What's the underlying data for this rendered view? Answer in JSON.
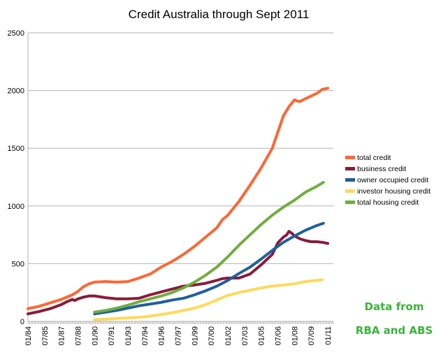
{
  "chart_data": {
    "type": "line",
    "title": "Credit Australia through Sept 2011",
    "xlabel": "",
    "ylabel": "",
    "ylim": [
      0,
      2500
    ],
    "yticks": [
      0,
      500,
      1000,
      1500,
      2000,
      2500
    ],
    "grid": true,
    "legend_position": "right",
    "xticks": [
      "01/84",
      "07/85",
      "01/87",
      "07/88",
      "01/90",
      "07/91",
      "01/93",
      "07/94",
      "01/96",
      "07/97",
      "01/99",
      "07/00",
      "01/02",
      "07/03",
      "01/05",
      "07/06",
      "01/08",
      "07/09",
      "01/11"
    ],
    "series": [
      {
        "name": "total credit",
        "color": "#ff6633",
        "points": [
          [
            1984.0,
            110
          ],
          [
            1985.0,
            130
          ],
          [
            1986.0,
            160
          ],
          [
            1987.0,
            190
          ],
          [
            1988.0,
            230
          ],
          [
            1988.5,
            260
          ],
          [
            1989.0,
            300
          ],
          [
            1989.5,
            325
          ],
          [
            1990.0,
            340
          ],
          [
            1991.0,
            345
          ],
          [
            1992.0,
            340
          ],
          [
            1993.0,
            345
          ],
          [
            1994.0,
            375
          ],
          [
            1995.0,
            410
          ],
          [
            1996.0,
            470
          ],
          [
            1997.0,
            520
          ],
          [
            1998.0,
            580
          ],
          [
            1999.0,
            650
          ],
          [
            2000.0,
            730
          ],
          [
            2001.0,
            810
          ],
          [
            2001.5,
            880
          ],
          [
            2002.0,
            920
          ],
          [
            2003.0,
            1040
          ],
          [
            2004.0,
            1180
          ],
          [
            2005.0,
            1330
          ],
          [
            2006.0,
            1500
          ],
          [
            2007.0,
            1780
          ],
          [
            2007.5,
            1860
          ],
          [
            2008.0,
            1920
          ],
          [
            2008.2,
            1910
          ],
          [
            2008.5,
            1905
          ],
          [
            2009.0,
            1930
          ],
          [
            2010.0,
            1975
          ],
          [
            2010.5,
            2010
          ],
          [
            2011.0,
            2020
          ]
        ]
      },
      {
        "name": "business credit",
        "color": "#8b1a38",
        "points": [
          [
            1984.0,
            65
          ],
          [
            1985.0,
            85
          ],
          [
            1986.0,
            110
          ],
          [
            1987.0,
            145
          ],
          [
            1987.5,
            170
          ],
          [
            1988.0,
            190
          ],
          [
            1988.2,
            180
          ],
          [
            1988.5,
            195
          ],
          [
            1989.0,
            210
          ],
          [
            1989.5,
            220
          ],
          [
            1990.0,
            220
          ],
          [
            1991.0,
            205
          ],
          [
            1992.0,
            195
          ],
          [
            1993.0,
            195
          ],
          [
            1994.0,
            200
          ],
          [
            1995.0,
            230
          ],
          [
            1996.0,
            255
          ],
          [
            1997.0,
            280
          ],
          [
            1998.0,
            305
          ],
          [
            1999.0,
            315
          ],
          [
            2000.0,
            330
          ],
          [
            2001.0,
            355
          ],
          [
            2001.5,
            370
          ],
          [
            2002.0,
            375
          ],
          [
            2003.0,
            375
          ],
          [
            2004.0,
            410
          ],
          [
            2005.0,
            490
          ],
          [
            2006.0,
            580
          ],
          [
            2006.5,
            680
          ],
          [
            2007.0,
            730
          ],
          [
            2007.3,
            750
          ],
          [
            2007.5,
            780
          ],
          [
            2007.8,
            760
          ],
          [
            2008.0,
            740
          ],
          [
            2008.5,
            715
          ],
          [
            2009.0,
            700
          ],
          [
            2009.5,
            690
          ],
          [
            2010.0,
            690
          ],
          [
            2010.5,
            685
          ],
          [
            2011.0,
            675
          ]
        ]
      },
      {
        "name": "owner occupied credit",
        "color": "#1f5f9e",
        "points": [
          [
            1990.0,
            65
          ],
          [
            1991.0,
            80
          ],
          [
            1992.0,
            95
          ],
          [
            1993.0,
            115
          ],
          [
            1994.0,
            135
          ],
          [
            1995.0,
            150
          ],
          [
            1996.0,
            165
          ],
          [
            1997.0,
            185
          ],
          [
            1998.0,
            200
          ],
          [
            1999.0,
            230
          ],
          [
            2000.0,
            265
          ],
          [
            2001.0,
            305
          ],
          [
            2002.0,
            355
          ],
          [
            2003.0,
            415
          ],
          [
            2004.0,
            470
          ],
          [
            2005.0,
            540
          ],
          [
            2006.0,
            615
          ],
          [
            2007.0,
            685
          ],
          [
            2008.0,
            740
          ],
          [
            2009.0,
            790
          ],
          [
            2010.0,
            830
          ],
          [
            2010.6,
            850
          ]
        ]
      },
      {
        "name": "investor housing credit",
        "color": "#ffd95a",
        "points": [
          [
            1990.0,
            15
          ],
          [
            1991.0,
            20
          ],
          [
            1992.0,
            25
          ],
          [
            1993.0,
            30
          ],
          [
            1994.0,
            35
          ],
          [
            1995.0,
            45
          ],
          [
            1996.0,
            60
          ],
          [
            1997.0,
            75
          ],
          [
            1998.0,
            95
          ],
          [
            1999.0,
            115
          ],
          [
            2000.0,
            145
          ],
          [
            2001.0,
            185
          ],
          [
            2002.0,
            225
          ],
          [
            2003.0,
            250
          ],
          [
            2004.0,
            270
          ],
          [
            2005.0,
            290
          ],
          [
            2006.0,
            305
          ],
          [
            2007.0,
            315
          ],
          [
            2008.0,
            325
          ],
          [
            2009.0,
            345
          ],
          [
            2010.0,
            355
          ],
          [
            2010.5,
            360
          ]
        ]
      },
      {
        "name": "total housing credit",
        "color": "#6fae3e",
        "points": [
          [
            1990.0,
            80
          ],
          [
            1991.0,
            95
          ],
          [
            1992.0,
            115
          ],
          [
            1993.0,
            140
          ],
          [
            1994.0,
            170
          ],
          [
            1995.0,
            195
          ],
          [
            1996.0,
            220
          ],
          [
            1997.0,
            250
          ],
          [
            1998.0,
            290
          ],
          [
            1999.0,
            340
          ],
          [
            2000.0,
            400
          ],
          [
            2001.0,
            470
          ],
          [
            2002.0,
            560
          ],
          [
            2003.0,
            660
          ],
          [
            2004.0,
            750
          ],
          [
            2005.0,
            840
          ],
          [
            2006.0,
            920
          ],
          [
            2007.0,
            990
          ],
          [
            2008.0,
            1050
          ],
          [
            2009.0,
            1120
          ],
          [
            2010.0,
            1170
          ],
          [
            2010.6,
            1205
          ]
        ]
      }
    ]
  },
  "annotation": {
    "line1": "Data from",
    "line2": "RBA and ABS"
  }
}
